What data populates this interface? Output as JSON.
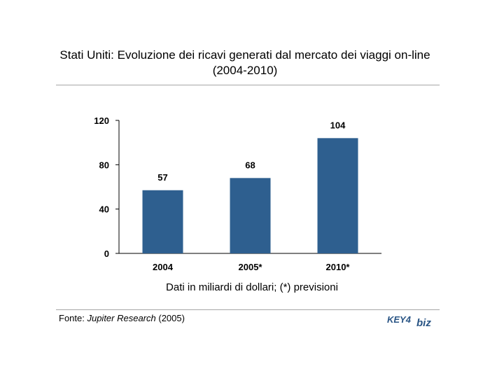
{
  "title": {
    "line1": "Stati Uniti: Evoluzione dei ricavi generati dal mercato dei viaggi on-line",
    "line2": "(2004-2010)"
  },
  "chart_data": {
    "type": "bar",
    "categories": [
      "2004",
      "2005*",
      "2010*"
    ],
    "values": [
      57,
      68,
      104
    ],
    "data_labels": [
      "57",
      "68",
      "104"
    ],
    "title": "Stati Uniti: Evoluzione dei ricavi generati dal mercato dei viaggi on-line (2004-2010)",
    "xlabel": "Dati in miliardi di dollari; (*) previsioni",
    "ylabel": "",
    "ylim": [
      0,
      120
    ],
    "yticks": [
      "0",
      "40",
      "80",
      "120"
    ],
    "grid": false,
    "legend": "none",
    "bar_color": "#2e5f8f"
  },
  "source": {
    "prefix": "Fonte: ",
    "name": "Jupiter Research",
    "suffix": " (2005)"
  },
  "logo": {
    "part1": "KEY4",
    "part2": "biz",
    "color": "#2a5585"
  },
  "colors": {
    "rule": "#a6a6a6",
    "axis": "#000000"
  }
}
